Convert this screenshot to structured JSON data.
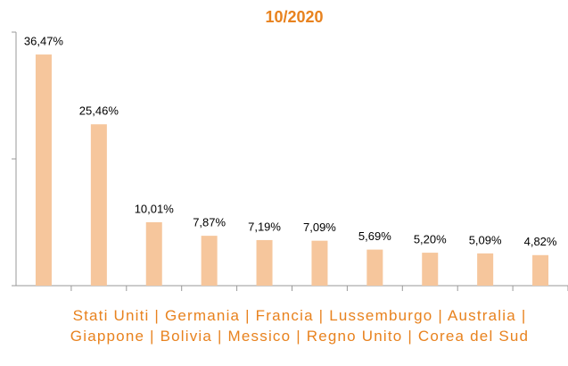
{
  "chart_data": {
    "type": "bar",
    "title": "10/2020",
    "xlabel": "Stati Uniti | Germania | Francia | Lussemburgo | Australia | Giappone | Bolivia | Messico | Regno Unito | Corea del Sud",
    "categories": [
      null,
      null,
      null,
      null,
      null,
      null,
      null,
      null,
      null,
      null
    ],
    "values": [
      36.47,
      25.46,
      10.01,
      7.87,
      7.19,
      7.09,
      5.69,
      5.2,
      5.09,
      4.82
    ],
    "value_labels": [
      "36,47%",
      "25,46%",
      "10,01%",
      "7,87%",
      "7,19%",
      "7,09%",
      "5,69%",
      "5,20%",
      "5,09%",
      "4,82%"
    ],
    "color": "#f6c69c",
    "ylim": [
      0,
      40
    ],
    "yticks": [
      0,
      20,
      40
    ]
  }
}
